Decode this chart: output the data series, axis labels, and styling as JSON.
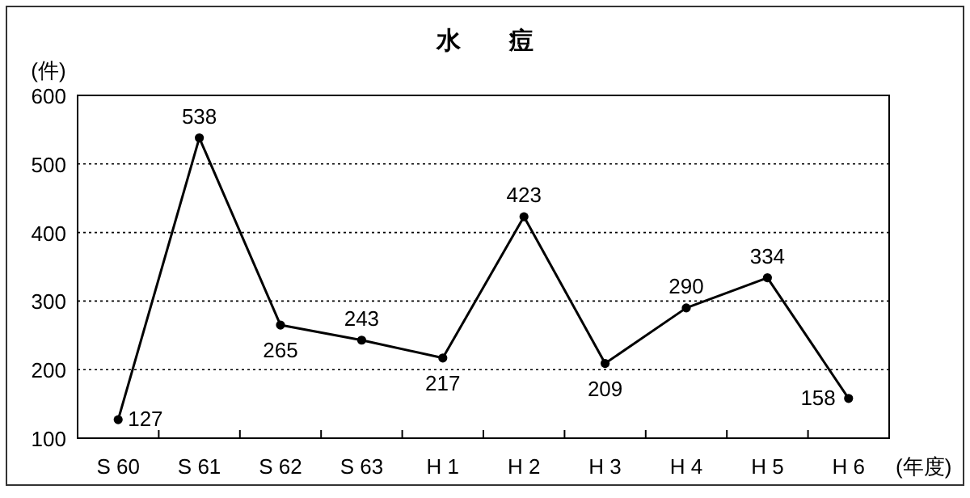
{
  "chart_data": {
    "type": "line",
    "title": "水　　痘",
    "ylabel": "(件)",
    "xlabel": "(年度)",
    "categories": [
      "S 60",
      "S 61",
      "S 62",
      "S 63",
      "H 1",
      "H 2",
      "H 3",
      "H 4",
      "H 5",
      "H 6"
    ],
    "series": [
      {
        "color": "#000000",
        "values": [
          127,
          538,
          265,
          243,
          217,
          423,
          209,
          290,
          334,
          158
        ]
      }
    ],
    "ylim": [
      100,
      600
    ],
    "yticks": [
      100,
      200,
      300,
      400,
      500,
      600
    ],
    "grid": "y",
    "marker": "circle",
    "line_style": "solid",
    "data_labels": true
  }
}
